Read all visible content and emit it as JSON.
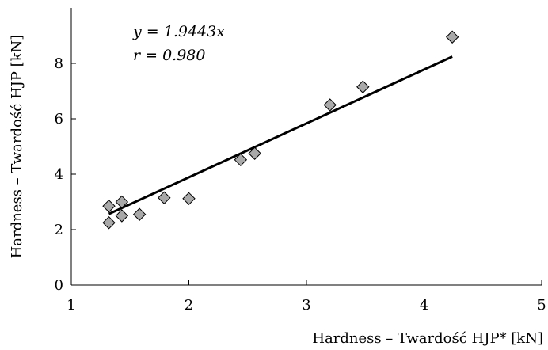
{
  "chart_data": {
    "type": "scatter",
    "title": "",
    "xlabel": "Hardness – Twardość HJP* [kN]",
    "ylabel": "Hardness – Twardość HJP [kN]",
    "xlim": [
      1,
      5
    ],
    "ylim": [
      0,
      10
    ],
    "xticks": [
      1,
      2,
      3,
      4,
      5
    ],
    "yticks": [
      0,
      2,
      4,
      6,
      8
    ],
    "grid": false,
    "legend": "none",
    "marker": "diamond",
    "marker_color": "#a9a9a9",
    "line_color": "#000000",
    "series": [
      {
        "points": [
          {
            "x": 1.32,
            "y": 2.25
          },
          {
            "x": 1.32,
            "y": 2.85
          },
          {
            "x": 1.43,
            "y": 2.5
          },
          {
            "x": 1.43,
            "y": 3.0
          },
          {
            "x": 1.58,
            "y": 2.55
          },
          {
            "x": 1.79,
            "y": 3.15
          },
          {
            "x": 2.0,
            "y": 3.12
          },
          {
            "x": 2.44,
            "y": 4.52
          },
          {
            "x": 2.56,
            "y": 4.75
          },
          {
            "x": 3.2,
            "y": 6.5
          },
          {
            "x": 3.48,
            "y": 7.15
          },
          {
            "x": 4.24,
            "y": 8.95
          }
        ]
      }
    ],
    "fit": {
      "slope": 1.9443,
      "x_range": [
        1.32,
        4.24
      ]
    },
    "annotations": [
      "y = 1.9443x",
      "r = 0.980"
    ]
  }
}
